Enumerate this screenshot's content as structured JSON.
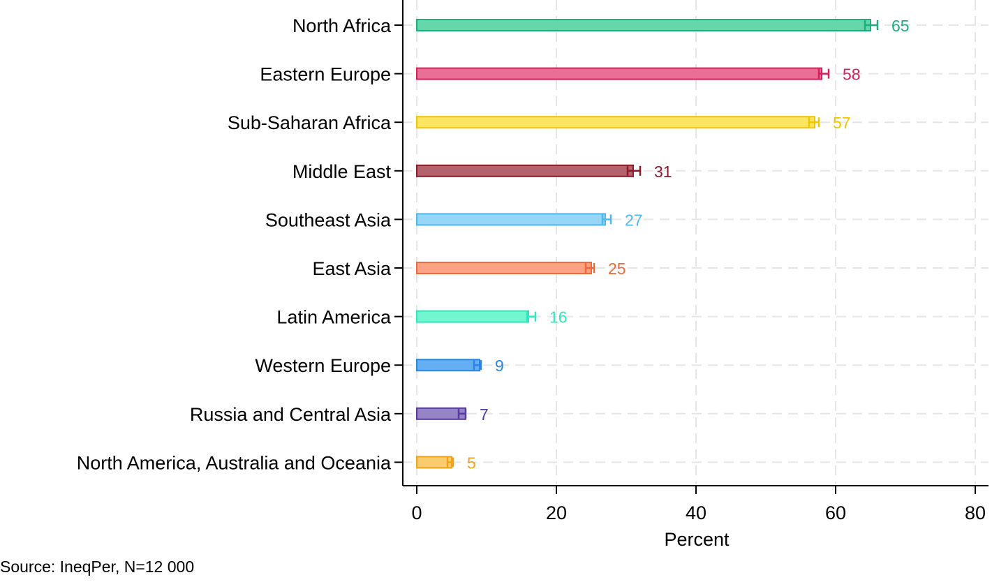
{
  "chart_data": {
    "type": "bar",
    "orientation": "horizontal",
    "title": "",
    "xlabel": "Percent",
    "ylabel": "",
    "xlim": [
      0,
      80
    ],
    "xticks": [
      0,
      20,
      40,
      60,
      80
    ],
    "grid": true,
    "grid_style": "dashed",
    "legend": "none",
    "categories": [
      "North Africa",
      "Eastern Europe",
      "Sub-Saharan Africa",
      "Middle East",
      "Southeast Asia",
      "East Asia",
      "Latin America",
      "Western Europe",
      "Russia and Central Asia",
      "North America, Australia and Oceania"
    ],
    "values": [
      65,
      58,
      57,
      31,
      27,
      25,
      16,
      9,
      7,
      5
    ],
    "value_labels": [
      "65",
      "58",
      "57",
      "31",
      "27",
      "25",
      "16",
      "9",
      "7",
      "5"
    ],
    "error_low": [
      64.2,
      57.6,
      56.2,
      30.2,
      26.6,
      24.2,
      15.8,
      8.2,
      6.0,
      4.4
    ],
    "error_high": [
      66.0,
      59.0,
      57.6,
      32.0,
      27.8,
      25.4,
      17.0,
      9.2,
      7.0,
      5.2
    ],
    "colors": [
      "#1aaf7c",
      "#d81e5b",
      "#f2c500",
      "#8b1a2b",
      "#4fb7ef",
      "#ee6a3a",
      "#2ee8b8",
      "#2a86e6",
      "#5b3aa0",
      "#f0a21a"
    ],
    "fill_colors": [
      "#66d6ab",
      "#ea6f97",
      "#fde564",
      "#b4636d",
      "#97d6f7",
      "#fba285",
      "#72f6d0",
      "#64aef3",
      "#9584c6",
      "#fbcb6f"
    ],
    "source_note": "Source: IneqPer, N=12 000"
  }
}
